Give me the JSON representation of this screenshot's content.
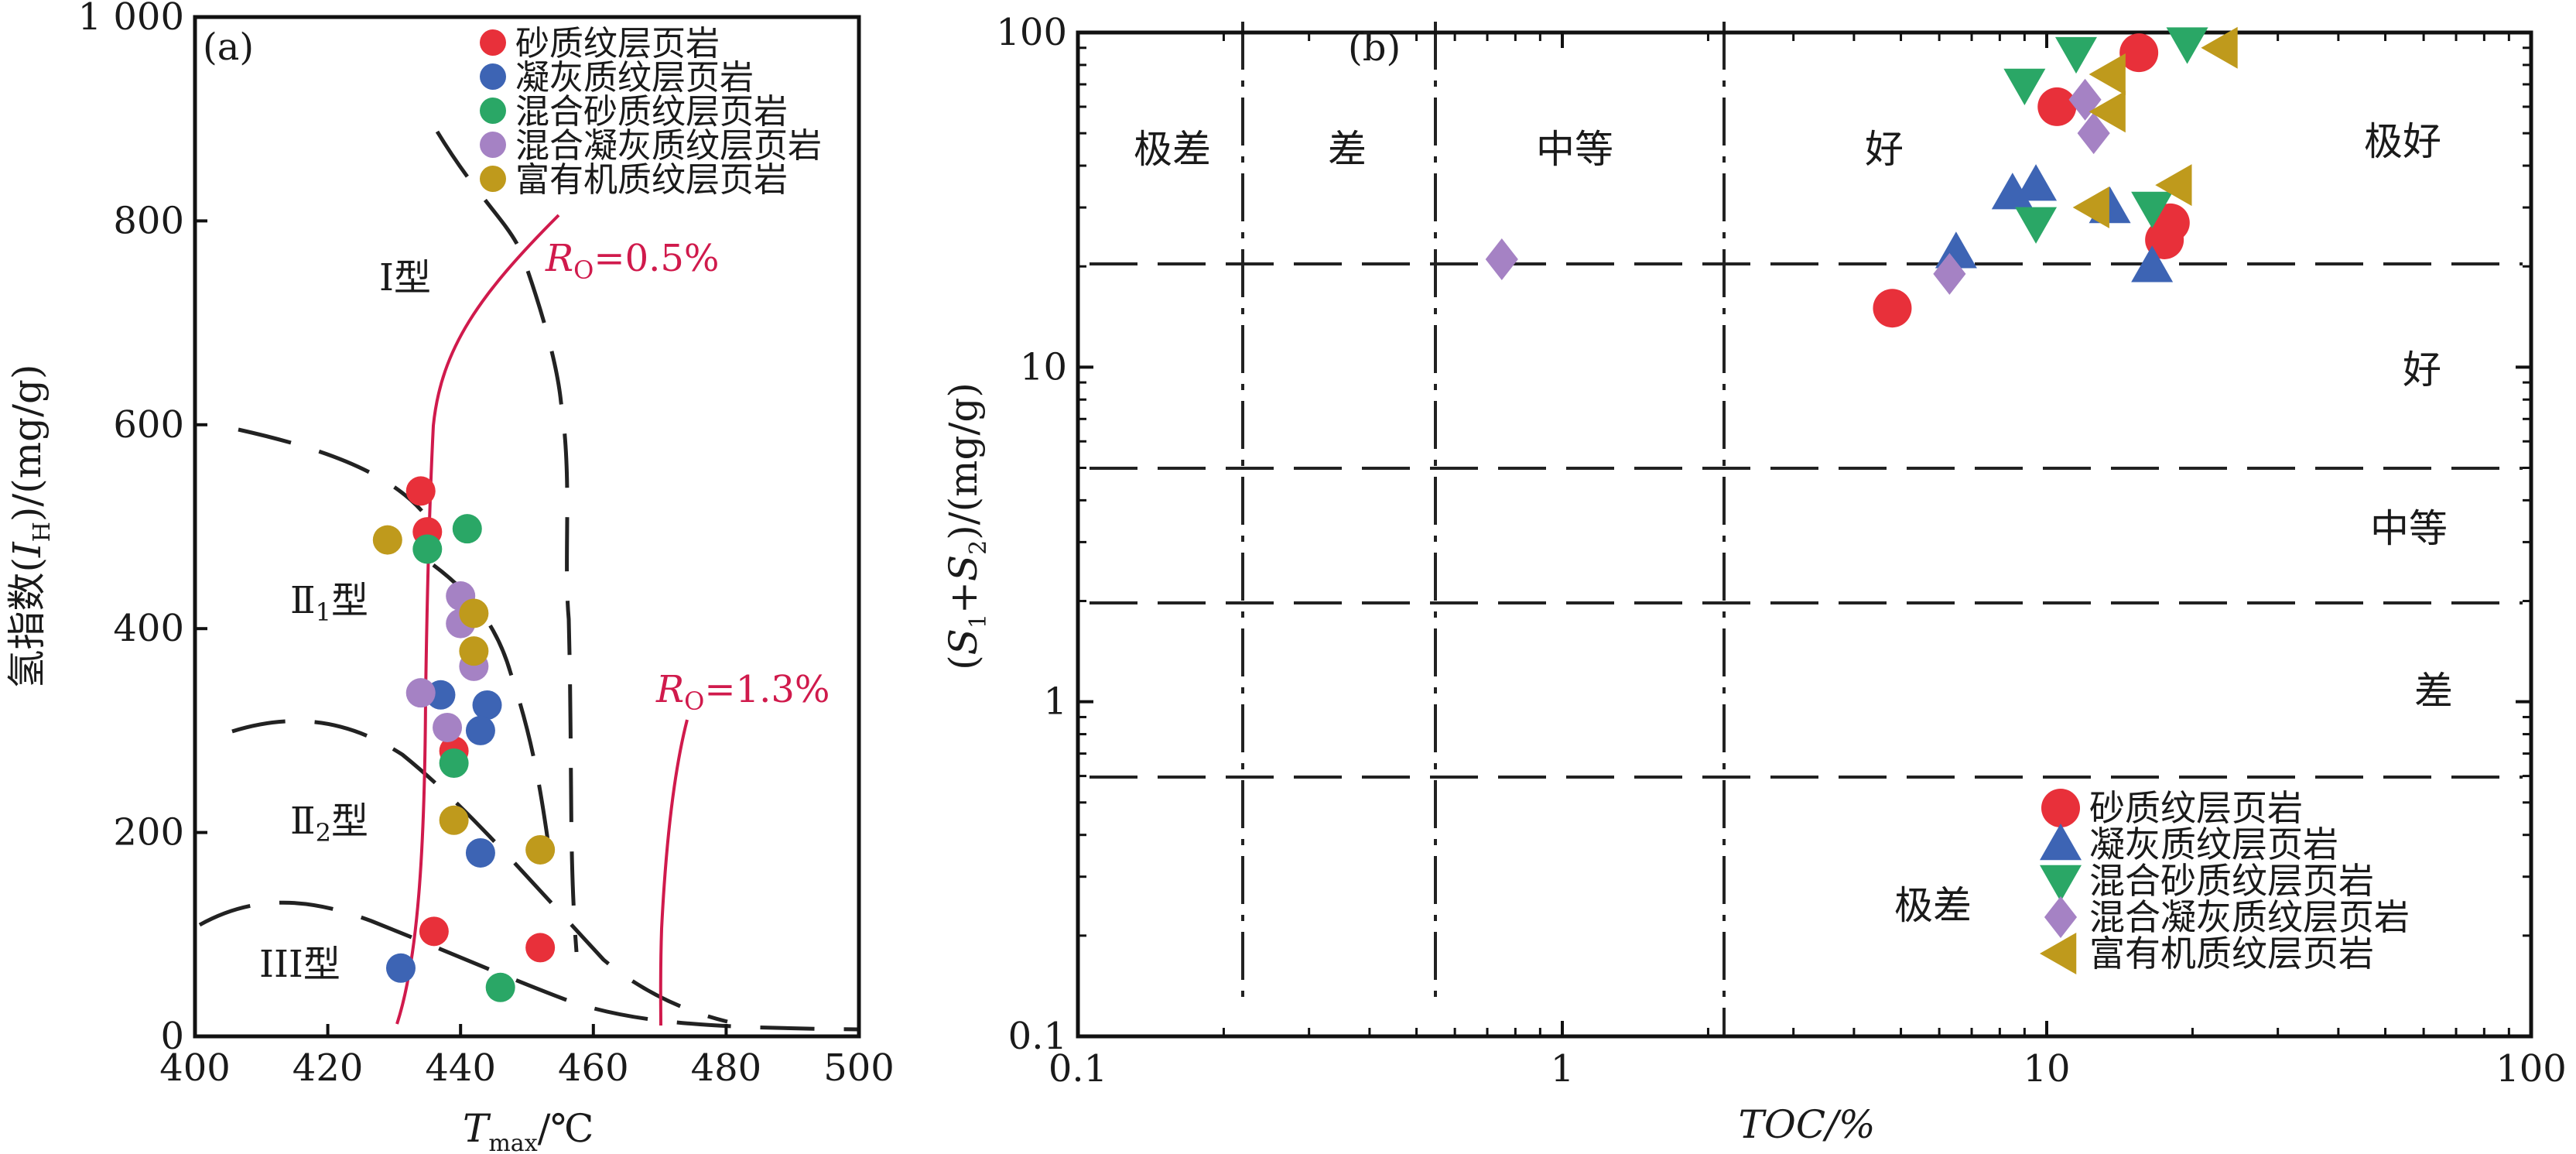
{
  "panel_a": {
    "label": "(a)",
    "xlabel_main": "T",
    "xlabel_sub": "max",
    "xlabel_unit": "/℃",
    "ylabel_pre": "氢指数(",
    "ylabel_italic": "I",
    "ylabel_sub": "H",
    "ylabel_post": ")/(mg/g)",
    "type_labels": [
      "I型",
      "Ⅱ",
      "1",
      "型",
      "Ⅱ",
      "2",
      "型",
      "III型"
    ],
    "ro_labels": [
      {
        "r": "R",
        "s": "O",
        "v": "=0.5%"
      },
      {
        "r": "R",
        "s": "O",
        "v": "=1.3%"
      }
    ]
  },
  "panel_b": {
    "label": "(b)",
    "xlabel": "TOC/%",
    "ylabel_pre": "(",
    "ylabel_s1": "S",
    "ylabel_s1sub": "1",
    "ylabel_plus": "+",
    "ylabel_s2": "S",
    "ylabel_s2sub": "2",
    "ylabel_post": ")/(mg/g)",
    "zone_top": [
      "极差",
      "差",
      "中等",
      "好",
      "极好"
    ],
    "zone_right": [
      "好",
      "中等",
      "差"
    ],
    "zone_bottom": "极差"
  },
  "legend": [
    "砂质纹层页岩",
    "凝灰质纹层页岩",
    "混合砂质纹层页岩",
    "混合凝灰质纹层页岩",
    "富有机质纹层页岩"
  ],
  "colors": {
    "red": "#e8303a",
    "blue": "#3d64b4",
    "green": "#2aa766",
    "purple": "#a582c4",
    "gold": "#bf9a1c",
    "ro_line": "#d01a4c"
  },
  "chart_data": [
    {
      "type": "scatter",
      "xlabel": "Tmax/℃",
      "ylabel": "氢指数(IH)/(mg/g)",
      "xlim": [
        400,
        500
      ],
      "ylim": [
        0,
        1000
      ],
      "xticks": [
        400,
        420,
        440,
        460,
        480,
        500
      ],
      "yticks": [
        0,
        200,
        400,
        600,
        800,
        1000
      ],
      "xtick_labels": [
        "400",
        "420",
        "440",
        "460",
        "480",
        "500"
      ],
      "ytick_labels": [
        "0",
        "200",
        "400",
        "600",
        "800",
        "1 000"
      ],
      "series": [
        {
          "name": "砂质纹层页岩",
          "color": "#e8303a",
          "marker": "circle",
          "points": [
            [
              434,
              535
            ],
            [
              435,
              495
            ],
            [
              439,
              280
            ],
            [
              436,
              103
            ],
            [
              452,
              87
            ]
          ]
        },
        {
          "name": "凝灰质纹层页岩",
          "color": "#3d64b4",
          "marker": "circle",
          "points": [
            [
              437,
              335
            ],
            [
              444,
              325
            ],
            [
              443,
              300
            ],
            [
              443,
              180
            ],
            [
              431,
              67
            ]
          ]
        },
        {
          "name": "混合砂质纹层页岩",
          "color": "#2aa766",
          "marker": "circle",
          "points": [
            [
              441,
              498
            ],
            [
              435,
              478
            ],
            [
              439,
              268
            ],
            [
              446,
              48
            ]
          ]
        },
        {
          "name": "混合凝灰质纹层页岩",
          "color": "#a582c4",
          "marker": "circle",
          "points": [
            [
              440,
              432
            ],
            [
              440,
              405
            ],
            [
              442,
              363
            ],
            [
              434,
              337
            ],
            [
              438,
              303
            ]
          ]
        },
        {
          "name": "富有机质纹层页岩",
          "color": "#bf9a1c",
          "marker": "circle",
          "points": [
            [
              429,
              487
            ],
            [
              442,
              415
            ],
            [
              442,
              378
            ],
            [
              439,
              212
            ],
            [
              452,
              183
            ]
          ]
        }
      ]
    },
    {
      "type": "scatter",
      "xlabel": "TOC/%",
      "ylabel": "(S1+S2)/(mg/g)",
      "xscale": "log",
      "yscale": "log",
      "xlim": [
        0.1,
        100
      ],
      "ylim": [
        0.1,
        100
      ],
      "xticks": [
        0.1,
        1,
        10,
        100
      ],
      "yticks": [
        0.1,
        1,
        10,
        100
      ],
      "xtick_labels": [
        "0.1",
        "1",
        "10",
        "100"
      ],
      "ytick_labels": [
        "0.1",
        "1",
        "10",
        "100"
      ],
      "series": [
        {
          "name": "砂质纹层页岩",
          "color": "#e8303a",
          "marker": "circle",
          "points": [
            [
              4.8,
              15
            ],
            [
              10.5,
              60
            ],
            [
              15.5,
              87
            ],
            [
              18,
              27
            ],
            [
              17.5,
              24
            ]
          ]
        },
        {
          "name": "凝灰质纹层页岩",
          "color": "#3d64b4",
          "marker": "triangle-up",
          "points": [
            [
              8.5,
              33
            ],
            [
              9.5,
              35
            ],
            [
              6.5,
              22
            ],
            [
              13.5,
              30
            ],
            [
              16.5,
              20
            ]
          ]
        },
        {
          "name": "混合砂质纹层页岩",
          "color": "#2aa766",
          "marker": "triangle-down",
          "points": [
            [
              9.0,
              70
            ],
            [
              9.5,
              27
            ],
            [
              11.5,
              87
            ],
            [
              16.5,
              30
            ],
            [
              19.5,
              93
            ]
          ]
        },
        {
          "name": "混合凝灰质纹层页岩",
          "color": "#a582c4",
          "marker": "diamond",
          "points": [
            [
              0.75,
              21
            ],
            [
              6.3,
              19
            ],
            [
              12.0,
              63
            ],
            [
              12.5,
              50
            ]
          ]
        },
        {
          "name": "富有机质纹层页岩",
          "color": "#bf9a1c",
          "marker": "triangle-left",
          "points": [
            [
              13.5,
              75
            ],
            [
              13.5,
              58
            ],
            [
              12.5,
              30
            ],
            [
              18.5,
              35
            ],
            [
              23.0,
              90
            ]
          ]
        }
      ]
    }
  ]
}
